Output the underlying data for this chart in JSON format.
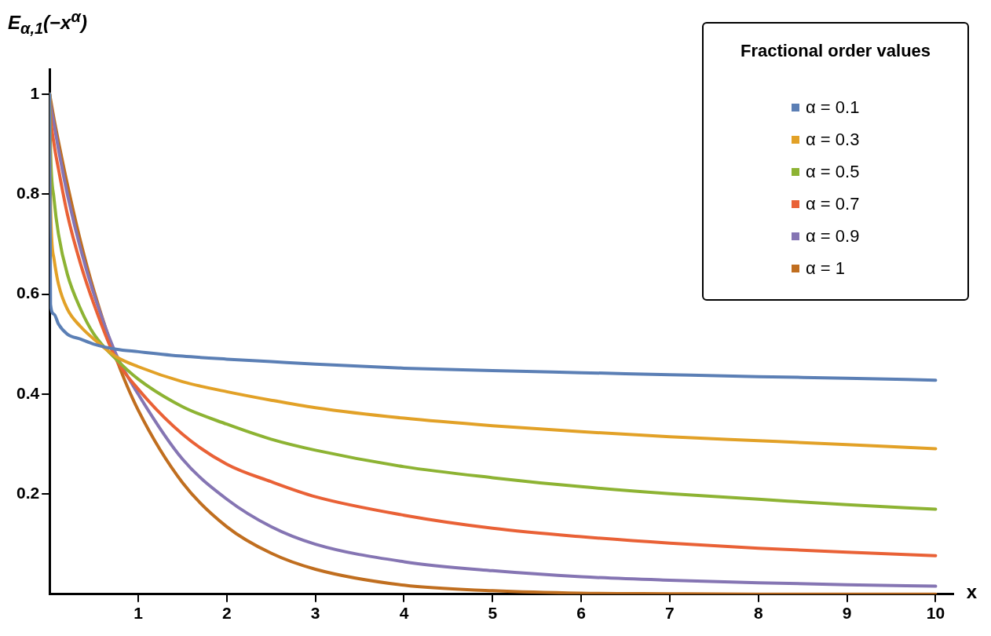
{
  "chart_data": {
    "type": "line",
    "ylabel": "E$_{α,1}$(−x$^{α}$)",
    "xlabel": "x",
    "legend_title": "Fractional order values",
    "x": [
      0,
      0.01,
      0.05,
      0.1,
      0.2,
      0.35,
      0.5,
      0.75,
      1,
      1.5,
      2,
      2.5,
      3,
      4,
      5,
      6,
      7,
      8,
      9,
      10
    ],
    "series": [
      {
        "name": "α = 0.1",
        "color": "#5b7fb5",
        "values": [
          1,
          0.58,
          0.56,
          0.54,
          0.52,
          0.51,
          0.5,
          0.49,
          0.485,
          0.476,
          0.47,
          0.465,
          0.46,
          0.452,
          0.447,
          0.443,
          0.439,
          0.435,
          0.432,
          0.428
        ]
      },
      {
        "name": "α = 0.3",
        "color": "#e2a127",
        "values": [
          1,
          0.78,
          0.67,
          0.62,
          0.57,
          0.535,
          0.51,
          0.475,
          0.455,
          0.425,
          0.405,
          0.388,
          0.373,
          0.352,
          0.337,
          0.325,
          0.315,
          0.307,
          0.299,
          0.291
        ]
      },
      {
        "name": "α = 0.5",
        "color": "#8db333",
        "values": [
          1,
          0.89,
          0.79,
          0.72,
          0.64,
          0.57,
          0.52,
          0.47,
          0.43,
          0.375,
          0.34,
          0.31,
          0.288,
          0.255,
          0.233,
          0.215,
          0.201,
          0.19,
          0.179,
          0.17
        ]
      },
      {
        "name": "α = 0.7",
        "color": "#e96136",
        "values": [
          1,
          0.96,
          0.9,
          0.85,
          0.76,
          0.66,
          0.58,
          0.47,
          0.41,
          0.32,
          0.26,
          0.225,
          0.195,
          0.158,
          0.132,
          0.115,
          0.102,
          0.092,
          0.084,
          0.077
        ]
      },
      {
        "name": "α = 0.9",
        "color": "#8575b3",
        "values": [
          1,
          0.98,
          0.94,
          0.89,
          0.8,
          0.69,
          0.6,
          0.48,
          0.4,
          0.27,
          0.19,
          0.135,
          0.1,
          0.065,
          0.047,
          0.035,
          0.028,
          0.023,
          0.019,
          0.016
        ]
      },
      {
        "name": "α = 1",
        "color": "#c06e1f",
        "values": [
          1,
          0.99,
          0.95,
          0.905,
          0.82,
          0.705,
          0.607,
          0.472,
          0.368,
          0.223,
          0.135,
          0.082,
          0.05,
          0.018,
          0.007,
          0.002,
          0.001,
          0,
          0,
          0
        ]
      }
    ],
    "xlim": [
      0,
      10.2
    ],
    "ylim": [
      0,
      1.05
    ],
    "xticks": [
      1,
      2,
      3,
      4,
      5,
      6,
      7,
      8,
      9,
      10
    ],
    "yticks": [
      0.2,
      0.4,
      0.6,
      0.8,
      1
    ],
    "grid": false,
    "legend": "top right",
    "line_style": "solid",
    "marker": "none"
  }
}
